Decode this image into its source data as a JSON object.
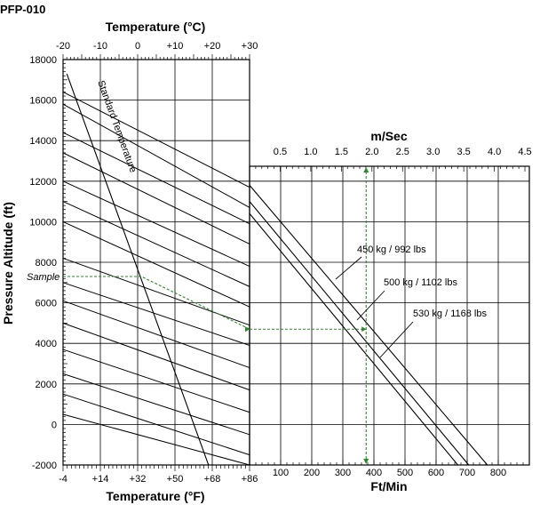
{
  "chart_data": {
    "type": "line",
    "id_label": "PFP-010",
    "left_panel": {
      "top_axis_title": "Temperature (°C)",
      "top_ticks": [
        "-20",
        "-10",
        "0",
        "+10",
        "+20",
        "+30"
      ],
      "top_range_c": [
        -20,
        30
      ],
      "bottom_axis_title": "Temperature (°F)",
      "bottom_ticks": [
        "-4",
        "+14",
        "+32",
        "+50",
        "+68",
        "+86"
      ],
      "y_axis_title": "Pressure Altitude (ft)",
      "y_ticks": [
        "18000",
        "16000",
        "14000",
        "12000",
        "10000",
        "8000",
        "6000",
        "4000",
        "2000",
        "0",
        "-2000"
      ],
      "y_range_ft": [
        -2000,
        18000
      ],
      "standard_temperature_label": "Standard Temperature",
      "standard_temperature_line": [
        [
          -19,
          17300
        ],
        [
          19,
          -2000
        ]
      ],
      "sample_label": "Sample",
      "guide_lines": [
        [
          [
            -20,
            16400
          ],
          [
            30,
            11700
          ]
        ],
        [
          [
            -20,
            15800
          ],
          [
            30,
            10700
          ]
        ],
        [
          [
            -20,
            14400
          ],
          [
            30,
            9900
          ]
        ],
        [
          [
            -20,
            13400
          ],
          [
            30,
            8900
          ]
        ],
        [
          [
            -20,
            12000
          ],
          [
            30,
            7800
          ]
        ],
        [
          [
            -20,
            11000
          ],
          [
            30,
            6800
          ]
        ],
        [
          [
            -20,
            10000
          ],
          [
            30,
            5800
          ]
        ],
        [
          [
            -20,
            8200
          ],
          [
            30,
            4900
          ]
        ],
        [
          [
            -20,
            7000
          ],
          [
            30,
            3900
          ]
        ],
        [
          [
            -20,
            6100
          ],
          [
            30,
            2800
          ]
        ],
        [
          [
            -20,
            5000
          ],
          [
            30,
            1700
          ]
        ],
        [
          [
            -20,
            3700
          ],
          [
            30,
            600
          ]
        ],
        [
          [
            -20,
            2500
          ],
          [
            30,
            -500
          ]
        ],
        [
          [
            -20,
            1500
          ],
          [
            30,
            -1500
          ]
        ],
        [
          [
            -20,
            500
          ],
          [
            30,
            -2000
          ]
        ]
      ],
      "sample_path": [
        [
          -20,
          7300
        ],
        [
          1,
          7300
        ],
        [
          30,
          4700
        ]
      ]
    },
    "right_panel": {
      "top_axis_title": "m/Sec",
      "top_ticks": [
        "0.5",
        "1.0",
        "1.5",
        "2.0",
        "2.5",
        "3.0",
        "3.5",
        "4.0",
        "4.5"
      ],
      "bottom_axis_title": "Ft/Min",
      "bottom_ticks": [
        "100",
        "200",
        "300",
        "400",
        "500",
        "600",
        "700",
        "800"
      ],
      "x_range_ftmin": [
        0,
        900
      ],
      "y_range_ft": [
        -2000,
        12700
      ],
      "series": [
        {
          "name": "450 kg / 992 lbs",
          "points": [
            [
              0,
              11800
            ],
            [
              765,
              -2000
            ]
          ]
        },
        {
          "name": "500 kg / 1102 lbs",
          "points": [
            [
              0,
              11000
            ],
            [
              705,
              -2000
            ]
          ]
        },
        {
          "name": "530 kg / 1168 lbs",
          "points": [
            [
              0,
              10400
            ],
            [
              670,
              -2000
            ]
          ]
        }
      ],
      "sample_horizontal": [
        [
          0,
          4700
        ],
        [
          375,
          4700
        ]
      ],
      "sample_vertical": [
        [
          375,
          12700
        ],
        [
          375,
          -2000
        ]
      ]
    },
    "colors": {
      "sample": "#2a8a2a",
      "line": "#000000",
      "grid": "#000000"
    }
  }
}
